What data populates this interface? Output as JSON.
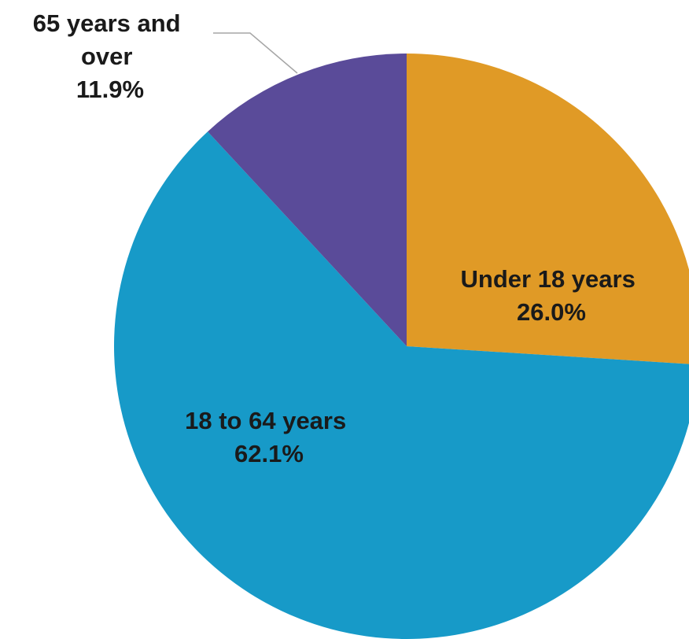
{
  "chart_data": {
    "type": "pie",
    "title": "",
    "start_angle_deg": 0,
    "direction": "clockwise",
    "slices": [
      {
        "label": "Under 18 years",
        "value": 26.0,
        "value_label": "26.0%",
        "color": "#E09A26"
      },
      {
        "label": "18 to 64 years",
        "value": 62.1,
        "value_label": "62.1%",
        "color": "#179AC8"
      },
      {
        "label": "65 years and over",
        "value": 11.9,
        "value_label": "11.9%",
        "color": "#5A4B99"
      }
    ]
  },
  "labels": {
    "under18": {
      "line1": "Under 18 years",
      "line2": "26.0%"
    },
    "working_age": {
      "line1": "18 to 64 years",
      "line2": "62.1%"
    },
    "seniors": {
      "line1": "65 years and",
      "line2": "over",
      "line3": "11.9%"
    }
  },
  "leader_line_color": "#a6a6a6"
}
